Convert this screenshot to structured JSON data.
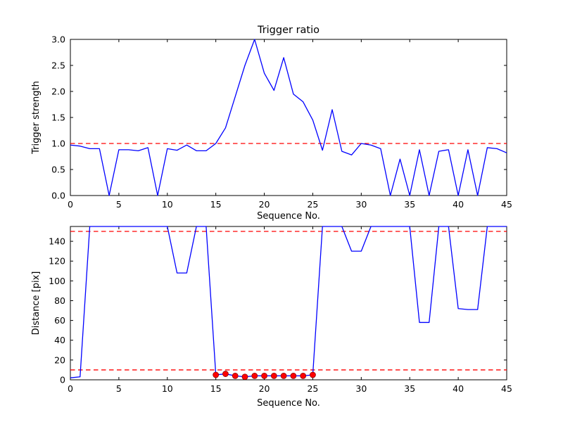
{
  "figure": {
    "background": "#ffffff"
  },
  "chart_data": [
    {
      "type": "line",
      "title": "Trigger ratio",
      "xlabel": "Sequence No.",
      "ylabel": "Trigger strength",
      "xlim": [
        0,
        45
      ],
      "ylim": [
        0,
        3
      ],
      "xticks": [
        0,
        5,
        10,
        15,
        20,
        25,
        30,
        35,
        40,
        45
      ],
      "yticks": [
        0,
        0.5,
        1,
        1.5,
        2,
        2.5,
        3
      ],
      "ytick_decimals": 1,
      "grid": false,
      "legend": "none",
      "line_color": "#0000ff",
      "threshold_lines": [
        {
          "y": 1.0,
          "color": "#ff0000",
          "style": "dashed"
        }
      ],
      "x": [
        0,
        1,
        2,
        3,
        4,
        5,
        6,
        7,
        8,
        9,
        10,
        11,
        12,
        13,
        14,
        15,
        16,
        17,
        18,
        19,
        20,
        21,
        22,
        23,
        24,
        25,
        26,
        27,
        28,
        29,
        30,
        31,
        32,
        33,
        34,
        35,
        36,
        37,
        38,
        39,
        40,
        41,
        42,
        43,
        44,
        45
      ],
      "y": [
        0.97,
        0.95,
        0.9,
        0.9,
        0.0,
        0.88,
        0.88,
        0.86,
        0.92,
        0.0,
        0.9,
        0.87,
        0.97,
        0.86,
        0.86,
        1.0,
        1.3,
        1.9,
        2.5,
        3.0,
        2.35,
        2.02,
        2.65,
        1.95,
        1.8,
        1.45,
        0.87,
        1.65,
        0.85,
        0.78,
        1.0,
        0.97,
        0.9,
        0.0,
        0.7,
        0.0,
        0.88,
        0.0,
        0.85,
        0.88,
        0.0,
        0.88,
        0.0,
        0.92,
        0.9,
        0.82
      ]
    },
    {
      "type": "line",
      "title": "",
      "xlabel": "Sequence No.",
      "ylabel": "Distance [pix]",
      "xlim": [
        0,
        45
      ],
      "ylim": [
        0,
        155
      ],
      "xticks": [
        0,
        5,
        10,
        15,
        20,
        25,
        30,
        35,
        40,
        45
      ],
      "yticks": [
        0,
        20,
        40,
        60,
        80,
        100,
        120,
        140
      ],
      "ytick_decimals": 0,
      "grid": false,
      "legend": "none",
      "line_color": "#0000ff",
      "threshold_lines": [
        {
          "y": 150,
          "color": "#ff0000",
          "style": "dashed"
        },
        {
          "y": 10,
          "color": "#ff0000",
          "style": "dashed"
        }
      ],
      "x": [
        0,
        1,
        2,
        3,
        4,
        5,
        6,
        7,
        8,
        9,
        10,
        11,
        12,
        13,
        14,
        15,
        16,
        17,
        18,
        19,
        20,
        21,
        22,
        23,
        24,
        25,
        26,
        27,
        28,
        29,
        30,
        31,
        32,
        33,
        34,
        35,
        36,
        37,
        38,
        39,
        40,
        41,
        42,
        43,
        44,
        45
      ],
      "y": [
        2,
        3,
        155,
        155,
        155,
        155,
        155,
        155,
        155,
        155,
        155,
        108,
        108,
        155,
        155,
        5,
        6,
        4,
        3,
        4,
        4,
        4,
        4,
        4,
        4,
        5,
        155,
        155,
        155,
        130,
        130,
        155,
        155,
        155,
        155,
        155,
        58,
        58,
        155,
        155,
        72,
        71,
        71,
        155,
        155,
        155
      ],
      "markers": {
        "color": "#ff0000",
        "edge_color": "#8b0000",
        "x": [
          15,
          16,
          17,
          18,
          19,
          20,
          21,
          22,
          23,
          24,
          25
        ],
        "y": [
          5,
          6,
          4,
          3,
          4,
          4,
          4,
          4,
          4,
          4,
          5
        ]
      }
    }
  ]
}
